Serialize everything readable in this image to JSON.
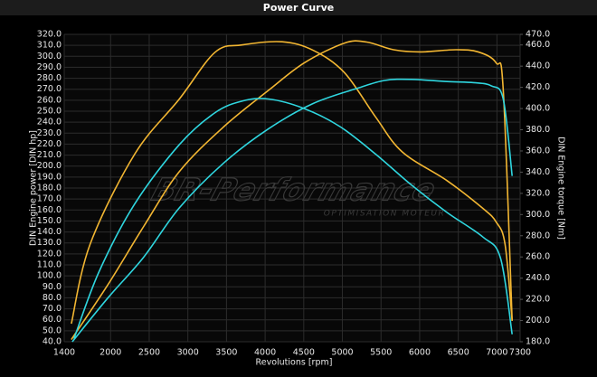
{
  "chart_data": {
    "type": "line",
    "title": "Power Curve",
    "xlabel": "Revolutions [rpm]",
    "ylabel": "DIN Engine power [DIN hp]",
    "y2label": "DIN Engine torque [Nm]",
    "watermark": "BR-Performance",
    "watermark_subtitle": "OPTIMISATION MOTEUR",
    "xlim": [
      1400,
      7300
    ],
    "xticks": [
      1400,
      2000,
      2500,
      3000,
      3500,
      4000,
      4500,
      5000,
      5500,
      6000,
      6500,
      7000,
      7300
    ],
    "ylim": [
      40,
      320
    ],
    "yticks": [
      {
        "value": 40,
        "label": "40.0"
      },
      {
        "value": 50,
        "label": "50.0"
      },
      {
        "value": 60,
        "label": "60.0"
      },
      {
        "value": 70,
        "label": "70.0"
      },
      {
        "value": 80,
        "label": "80.0"
      },
      {
        "value": 90,
        "label": "90.0"
      },
      {
        "value": 100,
        "label": "100.0"
      },
      {
        "value": 110,
        "label": "110.0"
      },
      {
        "value": 120,
        "label": "120.0"
      },
      {
        "value": 130,
        "label": "130.0"
      },
      {
        "value": 140,
        "label": "140.0"
      },
      {
        "value": 150,
        "label": "150.0"
      },
      {
        "value": 160,
        "label": "160.0"
      },
      {
        "value": 170,
        "label": "170.0"
      },
      {
        "value": 180,
        "label": "180.0"
      },
      {
        "value": 190,
        "label": "190.0"
      },
      {
        "value": 200,
        "label": "200.0"
      },
      {
        "value": 210,
        "label": "210.0"
      },
      {
        "value": 220,
        "label": "220.0"
      },
      {
        "value": 230,
        "label": "230.0"
      },
      {
        "value": 240,
        "label": "240.0"
      },
      {
        "value": 250,
        "label": "250.0"
      },
      {
        "value": 260,
        "label": "260.0"
      },
      {
        "value": 270,
        "label": "270.0"
      },
      {
        "value": 280,
        "label": "280.0"
      },
      {
        "value": 290,
        "label": "290.0"
      },
      {
        "value": 300,
        "label": "300.0"
      },
      {
        "value": 310,
        "label": "310.0"
      },
      {
        "value": 320,
        "label": "320.0"
      }
    ],
    "y2lim": [
      180,
      470
    ],
    "y2ticks": [
      {
        "value": 180,
        "label": "180.0"
      },
      {
        "value": 200,
        "label": "200.0"
      },
      {
        "value": 220,
        "label": "220.0"
      },
      {
        "value": 240,
        "label": "240.0"
      },
      {
        "value": 260,
        "label": "260.0"
      },
      {
        "value": 280,
        "label": "280.0"
      },
      {
        "value": 300,
        "label": "300.0"
      },
      {
        "value": 320,
        "label": "320.0"
      },
      {
        "value": 340,
        "label": "340.0"
      },
      {
        "value": 360,
        "label": "360.0"
      },
      {
        "value": 380,
        "label": "380.0"
      },
      {
        "value": 400,
        "label": "400.0"
      },
      {
        "value": 420,
        "label": "420.0"
      },
      {
        "value": 440,
        "label": "440.0"
      },
      {
        "value": 460,
        "label": "460.0"
      },
      {
        "value": 470,
        "label": "470.0"
      }
    ],
    "grid": true,
    "series": [
      {
        "color": "#f2b632",
        "axis": "y2",
        "x": [
          1492,
          1735,
          2312,
          2890,
          3350,
          3700,
          4220,
          4620,
          5025,
          5430,
          5776,
          6354,
          6815,
          6990,
          7105,
          7197
        ],
        "values": [
          197,
          272,
          357,
          409,
          453,
          460,
          463,
          455,
          434,
          392,
          359,
          332,
          306,
          293,
          272,
          200
        ]
      },
      {
        "color": "#f2b632",
        "x": [
          1492,
          1966,
          2428,
          2890,
          3467,
          4044,
          4506,
          5025,
          5314,
          5661,
          6007,
          6469,
          6758,
          6990,
          7082,
          7197
        ],
        "values": [
          42,
          92,
          145,
          195,
          236,
          269,
          294,
          312,
          313,
          306,
          304,
          306,
          304,
          294,
          269,
          59
        ]
      },
      {
        "color": "#2fd6df",
        "axis": "y2",
        "x": [
          1527,
          1850,
          2312,
          2890,
          3350,
          3700,
          4044,
          4506,
          4968,
          5430,
          5892,
          6354,
          6815,
          7046,
          7197
        ],
        "values": [
          183,
          246,
          310,
          366,
          396,
          407,
          409,
          400,
          383,
          357,
          328,
          302,
          279,
          259,
          187
        ]
      },
      {
        "color": "#2fd6df",
        "x": [
          1504,
          1966,
          2428,
          2890,
          3467,
          4044,
          4621,
          5199,
          5545,
          5892,
          6354,
          6700,
          6930,
          7082,
          7197
        ],
        "values": [
          40,
          80,
          117,
          162,
          203,
          234,
          257,
          271,
          278,
          279,
          277,
          276,
          273,
          261,
          191
        ]
      }
    ]
  }
}
